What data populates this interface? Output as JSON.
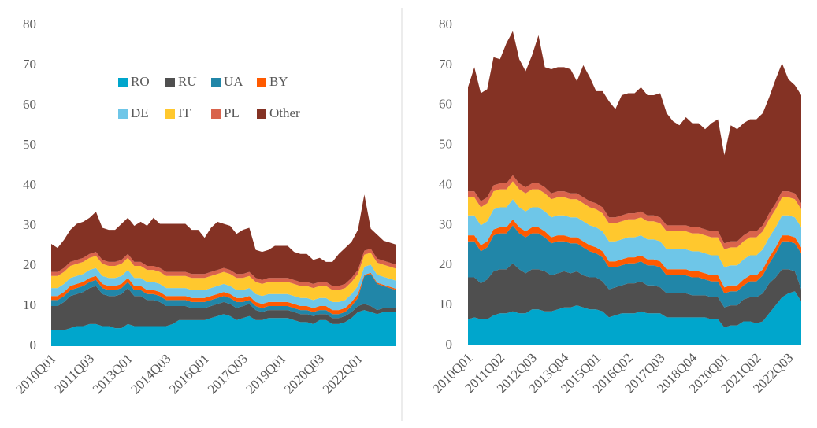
{
  "chart_data": [
    {
      "type": "area",
      "stacked": true,
      "legend": "top",
      "categories": [
        "2010Q01",
        null,
        null,
        null,
        null,
        null,
        "2011Q03",
        null,
        null,
        null,
        null,
        null,
        "2013Q01",
        null,
        null,
        null,
        null,
        null,
        "2014Q03",
        null,
        null,
        null,
        null,
        null,
        "2016Q01",
        null,
        null,
        null,
        null,
        null,
        "2017Q03",
        null,
        null,
        null,
        null,
        null,
        "2019Q01",
        null,
        null,
        null,
        null,
        null,
        "2020Q03",
        null,
        null,
        null,
        null,
        null,
        "2022Q01",
        null,
        null,
        null,
        null,
        null,
        null
      ],
      "ylim": [
        0,
        80
      ],
      "yticks": [
        0,
        10,
        20,
        30,
        40,
        50,
        60,
        70,
        80
      ],
      "series": [
        {
          "name": "RO",
          "color": "#00a6cc",
          "values": [
            4,
            4,
            4,
            4.5,
            5,
            5,
            5.5,
            5.5,
            5,
            5,
            4.5,
            4.5,
            5.5,
            5,
            5,
            5,
            5,
            5,
            5,
            5.5,
            6.5,
            6.5,
            6.5,
            6.5,
            6.5,
            7,
            7.5,
            8,
            7.5,
            6.5,
            7,
            7.5,
            6.5,
            6.5,
            7,
            7,
            7,
            7,
            6.5,
            6,
            6,
            5.5,
            6.5,
            6.5,
            5.5,
            5.5,
            6,
            7,
            8.5,
            9,
            8.5,
            8,
            8.5,
            8.5,
            8.5
          ]
        },
        {
          "name": "RU",
          "color": "#4f4f4f",
          "values": [
            6,
            6,
            7,
            8,
            8,
            8.5,
            9,
            9.5,
            8,
            7.5,
            8,
            8.5,
            9,
            7.5,
            7.5,
            6.5,
            6.5,
            6,
            5,
            4.5,
            3.5,
            3.5,
            3,
            3,
            3,
            3,
            3,
            3,
            3,
            3,
            3,
            3,
            2.5,
            2,
            2,
            2,
            2,
            2,
            2,
            2,
            2,
            2,
            1.5,
            1.5,
            1.5,
            1.5,
            1.5,
            1.5,
            1.5,
            1.5,
            1.5,
            1,
            1,
            1,
            1
          ]
        },
        {
          "name": "UA",
          "color": "#2186a8",
          "values": [
            1.5,
            1.5,
            1.5,
            1.5,
            1.5,
            1.5,
            1.5,
            1.5,
            1.5,
            1.5,
            1.5,
            1.5,
            1.5,
            1.5,
            1.5,
            1.5,
            1.5,
            1.5,
            1.5,
            1.5,
            1.5,
            1.5,
            1.5,
            1.5,
            1.5,
            1.5,
            1.5,
            1.5,
            1.5,
            1.5,
            1,
            1,
            1,
            1,
            1,
            1,
            1,
            1,
            1,
            1,
            1,
            1,
            1,
            1,
            1,
            1,
            1,
            1.5,
            2,
            7,
            8,
            6.5,
            5.5,
            5,
            4.5
          ]
        },
        {
          "name": "BY",
          "color": "#ff5a00",
          "values": [
            1,
            1,
            1,
            1,
            1,
            1,
            1,
            1,
            1,
            1,
            1,
            1,
            1,
            1,
            1,
            1,
            1,
            1,
            1,
            1,
            1,
            1,
            1,
            1,
            1,
            1,
            1,
            1,
            1,
            1,
            1,
            1,
            1,
            1,
            1,
            1,
            1,
            1,
            1,
            1,
            1,
            1,
            1,
            1,
            1,
            1,
            1,
            1,
            1,
            0.3,
            0.3,
            0.3,
            0.3,
            0.3,
            0.3
          ]
        },
        {
          "name": "DE",
          "color": "#6ec6e8",
          "values": [
            2,
            2,
            2,
            2,
            2,
            2,
            2,
            2,
            2,
            2,
            2,
            2,
            2,
            2,
            2,
            2,
            2,
            2,
            2,
            2,
            2,
            2,
            2,
            2,
            2,
            2,
            2,
            2,
            2,
            2,
            2,
            2,
            2,
            2,
            2,
            2,
            2,
            2,
            2,
            2,
            2,
            2,
            2,
            2,
            2,
            2,
            2,
            2,
            2,
            2,
            2,
            2,
            2,
            2,
            2
          ]
        },
        {
          "name": "IT",
          "color": "#ffc82e",
          "values": [
            3,
            3,
            3,
            3,
            3,
            3,
            3,
            3,
            3,
            3,
            3,
            3,
            3,
            3,
            3,
            3,
            3,
            3,
            3,
            3,
            3,
            3,
            3,
            3,
            3,
            3,
            3,
            3,
            3,
            3,
            3,
            3,
            3,
            3,
            3,
            3,
            3,
            3,
            3,
            3,
            3,
            3,
            3,
            3,
            3,
            3,
            3,
            3,
            3,
            3,
            3,
            3,
            3,
            3,
            3
          ]
        },
        {
          "name": "PL",
          "color": "#d9634c",
          "values": [
            1,
            1,
            1,
            1,
            1,
            1,
            1,
            1,
            1,
            1,
            1,
            1,
            1,
            1,
            1,
            1,
            1,
            1,
            1,
            1,
            1,
            1,
            1,
            1,
            1,
            1,
            1,
            1,
            1,
            1,
            1,
            1,
            1,
            1,
            1,
            1,
            1,
            1,
            1,
            1,
            1,
            1,
            1,
            1,
            1,
            1,
            1,
            1,
            1,
            1,
            1,
            1,
            1,
            1,
            1
          ]
        },
        {
          "name": "Other",
          "color": "#843224",
          "values": [
            7,
            6,
            7,
            8,
            9,
            9,
            9,
            10,
            8,
            8,
            8,
            9,
            9,
            9,
            10,
            10,
            12,
            11,
            12,
            12,
            12,
            12,
            11,
            11,
            9,
            11,
            12,
            11,
            11,
            10,
            11,
            11,
            7,
            7,
            7,
            8,
            8,
            8,
            7,
            7,
            7,
            6,
            6,
            5,
            6,
            8,
            9,
            9,
            10,
            14,
            5,
            6,
            5,
            5,
            5
          ]
        }
      ]
    },
    {
      "type": "area",
      "stacked": true,
      "categories": [
        "2010Q01",
        null,
        null,
        null,
        null,
        "2011Q02",
        null,
        null,
        null,
        null,
        "2012Q03",
        null,
        null,
        null,
        null,
        "2013Q04",
        null,
        null,
        null,
        null,
        "2015Q01",
        null,
        null,
        null,
        null,
        "2016Q02",
        null,
        null,
        null,
        null,
        "2017Q03",
        null,
        null,
        null,
        null,
        "2018Q04",
        null,
        null,
        null,
        null,
        "2020Q01",
        null,
        null,
        null,
        null,
        "2021Q02",
        null,
        null,
        null,
        null,
        "2022Q03",
        null,
        null
      ],
      "ylim": [
        0,
        80
      ],
      "yticks": [
        0,
        10,
        20,
        30,
        40,
        50,
        60,
        70,
        80
      ],
      "series": [
        {
          "color": "#00a6cc",
          "values": [
            6.5,
            7,
            6.5,
            6.5,
            7.5,
            8,
            8,
            8.5,
            8,
            8,
            9,
            9,
            8.5,
            8.5,
            9,
            9.5,
            9.5,
            10,
            9.5,
            9,
            9,
            8.5,
            7,
            7.5,
            8,
            8,
            8,
            8.5,
            8,
            8,
            8,
            7,
            7,
            7,
            7,
            7,
            7,
            7,
            6.5,
            6.5,
            4.5,
            5,
            5,
            6,
            6,
            5.5,
            6,
            8,
            10,
            12,
            13,
            13.5,
            11
          ]
        },
        {
          "color": "#4f4f4f",
          "values": [
            10.5,
            10,
            9,
            10,
            11,
            11,
            11,
            12,
            11,
            10,
            10,
            10,
            10,
            9,
            9,
            9,
            8.5,
            8.5,
            8,
            8,
            8,
            7.5,
            7,
            7,
            7,
            7.5,
            7.5,
            7.5,
            7,
            7,
            6.5,
            6,
            6,
            6,
            6,
            5.5,
            5.5,
            5.5,
            5.5,
            5.5,
            5,
            5,
            5,
            5.5,
            6,
            6.5,
            7,
            7.5,
            7,
            7,
            6,
            5,
            3
          ]
        },
        {
          "color": "#2186a8",
          "values": [
            9,
            9,
            8,
            8,
            9,
            9,
            9,
            9.5,
            9,
            9,
            9,
            9,
            8.5,
            8,
            8,
            7.5,
            7.5,
            7,
            7,
            6.5,
            6,
            6,
            5.5,
            5,
            5,
            5,
            5,
            5,
            5,
            5,
            5,
            4.5,
            4.5,
            4.5,
            4.5,
            4.5,
            4.5,
            4,
            4,
            4,
            3.5,
            3.5,
            3.5,
            3.5,
            4,
            4,
            4.5,
            5,
            6,
            7,
            7,
            7,
            9
          ]
        },
        {
          "color": "#ff5a00",
          "values": [
            1.5,
            1.5,
            1.5,
            1.5,
            1.5,
            1.5,
            1.5,
            1.5,
            1.5,
            1.5,
            1.5,
            1.5,
            1.5,
            1.5,
            1.5,
            1.5,
            1.5,
            1.5,
            1.5,
            1.5,
            1.5,
            1.5,
            1.5,
            1.5,
            1.5,
            1.5,
            1.5,
            1.5,
            1.5,
            1.5,
            1.5,
            1.5,
            1.5,
            1.5,
            1.5,
            1.5,
            1.5,
            1.5,
            1.5,
            1.5,
            1.5,
            1.5,
            1.5,
            1.5,
            1.5,
            1.5,
            1.5,
            1.5,
            1.5,
            1.5,
            1.5,
            1.5,
            1.5
          ]
        },
        {
          "color": "#6ec6e8",
          "values": [
            5,
            5,
            5,
            5,
            5,
            5,
            5,
            5,
            5,
            5,
            5,
            5,
            5,
            5,
            5,
            5,
            5,
            5,
            5,
            5,
            5,
            5,
            5,
            5,
            5,
            5,
            5,
            5,
            5,
            5,
            5,
            5,
            5,
            5,
            5,
            5,
            5,
            5,
            5,
            5,
            5,
            5,
            5,
            5,
            5,
            5,
            5,
            5,
            5,
            5,
            5,
            5,
            5
          ]
        },
        {
          "color": "#ffc82e",
          "values": [
            4.5,
            4.5,
            4.5,
            4.5,
            4.5,
            4.5,
            4.5,
            4.5,
            4.5,
            4.5,
            4.5,
            4.5,
            4.5,
            4.5,
            4.5,
            4.5,
            4.5,
            4.5,
            4.5,
            4.5,
            4.5,
            4.5,
            4.5,
            4.5,
            4.5,
            4.5,
            4.5,
            4.5,
            4.5,
            4.5,
            4.5,
            4.5,
            4.5,
            4.5,
            4.5,
            4.5,
            4.5,
            4.5,
            4.5,
            4.5,
            4.5,
            4.5,
            4.5,
            4.5,
            4.5,
            4.5,
            4.5,
            4.5,
            4.5,
            4.5,
            4.5,
            4.5,
            4.5
          ]
        },
        {
          "color": "#d9634c",
          "values": [
            1.5,
            1.5,
            1.5,
            1.5,
            1.5,
            1.5,
            1.5,
            1.5,
            1.5,
            1.5,
            1.5,
            1.5,
            1.5,
            1.5,
            1.5,
            1.5,
            1.5,
            1.5,
            1.5,
            1.5,
            1.5,
            1.5,
            1.5,
            1.5,
            1.5,
            1.5,
            1.5,
            1.5,
            1.5,
            1.5,
            1.5,
            1.5,
            1.5,
            1.5,
            1.5,
            1.5,
            1.5,
            1.5,
            1.5,
            1.5,
            1.5,
            1.5,
            1.5,
            1.5,
            1.5,
            1.5,
            1.5,
            1.5,
            1.5,
            1.5,
            1.5,
            1.5,
            1.5
          ]
        },
        {
          "color": "#843224",
          "values": [
            26,
            31,
            27,
            27,
            32,
            31,
            35,
            36,
            31,
            29,
            32,
            37,
            30,
            31,
            31,
            31,
            31,
            28,
            33,
            31,
            28,
            29,
            29,
            27,
            30,
            30,
            30,
            31,
            30,
            30,
            31,
            28,
            26,
            25,
            27,
            26,
            26,
            25,
            27,
            28,
            22,
            29,
            28,
            28,
            28,
            28,
            28,
            29,
            31,
            32,
            28,
            27,
            27
          ]
        }
      ]
    }
  ]
}
